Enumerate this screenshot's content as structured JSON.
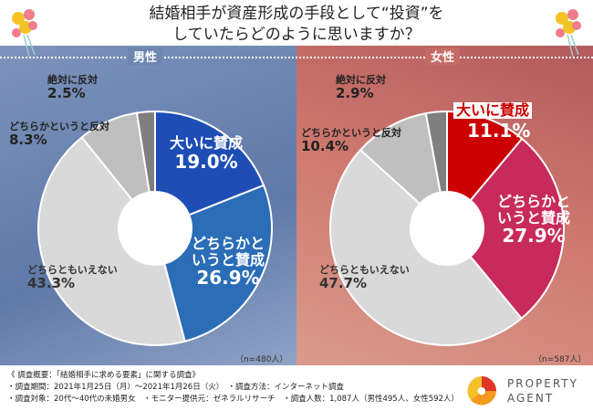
{
  "title_line1": "結婚相手が資産形成の手段として“投資”を",
  "title_line2": "していたらどのように思いますか？",
  "chart_data": [
    {
      "type": "pie",
      "donut": true,
      "title": "男性",
      "sample": "（n=480人）",
      "categories": [
        "大いに賛成",
        "どちらかというと賛成",
        "どちらともいえない",
        "どちらかというと反対",
        "絶対に反対"
      ],
      "values": [
        19.0,
        26.9,
        43.3,
        8.3,
        2.5
      ],
      "colors": [
        "#1d4db5",
        "#2b6db7",
        "#d9d9d9",
        "#bfbfbf",
        "#7f7f7f"
      ],
      "labels": [
        "19.0%",
        "26.9%",
        "43.3%",
        "8.3%",
        "2.5%"
      ]
    },
    {
      "type": "pie",
      "donut": true,
      "title": "女性",
      "sample": "（n=587人）",
      "categories": [
        "大いに賛成",
        "どちらかというと賛成",
        "どちらともいえない",
        "どちらかというと反対",
        "絶対に反対"
      ],
      "values": [
        11.1,
        27.9,
        47.7,
        10.4,
        2.9
      ],
      "colors": [
        "#cc0000",
        "#c92a5c",
        "#d9d9d9",
        "#bfbfbf",
        "#7f7f7f"
      ],
      "labels": [
        "11.1%",
        "27.9%",
        "47.7%",
        "10.4%",
        "2.9%"
      ]
    }
  ],
  "footer": {
    "line1": "《 調査概要：「結婚相手に求める要素」に関する調査》",
    "line2": "・調査期間：2021年1月25日（月）～2021年1月26日（火）　・調査方法：インターネット調査",
    "line3": "・調査対象：20代～40代の未婚男女　・モニター提供元：ゼネラルリサーチ　・調査人数：1,087人（男性495人、女性592人）"
  },
  "brand": {
    "line1": "PROPERTY",
    "line2": "AGENT"
  }
}
